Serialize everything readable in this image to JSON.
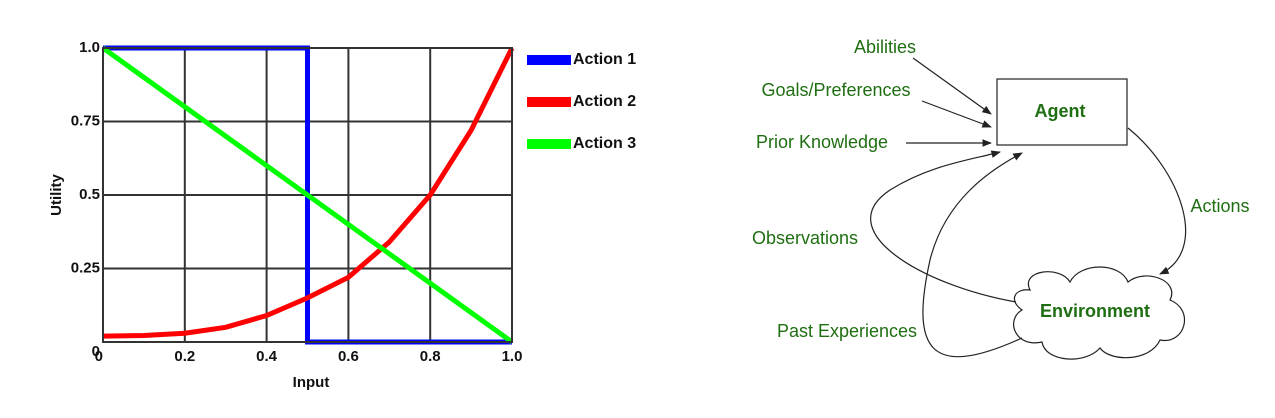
{
  "chart_data": {
    "type": "line",
    "x_label": "Input",
    "y_label": "Utility",
    "xlim": [
      0,
      1
    ],
    "ylim": [
      0,
      1
    ],
    "xticks": [
      0,
      0.2,
      0.4,
      0.6,
      0.8,
      {
        "value": 1,
        "label": "1.0"
      }
    ],
    "yticks": [
      0,
      0.25,
      0.5,
      0.75,
      {
        "value": 1,
        "label": "1.0"
      }
    ],
    "grid": true,
    "legend": "outside-right",
    "series": [
      {
        "name": "Action 1",
        "color": "#0000ff",
        "x": [
          0,
          0.5,
          0.5,
          1
        ],
        "values": [
          1,
          1,
          0,
          0
        ]
      },
      {
        "name": "Action 2",
        "color": "#ff0000",
        "x": [
          0,
          0.1,
          0.2,
          0.3,
          0.4,
          0.5,
          0.6,
          0.7,
          0.8,
          0.9,
          1
        ],
        "values": [
          0.02,
          0.022,
          0.03,
          0.05,
          0.09,
          0.15,
          0.22,
          0.34,
          0.5,
          0.72,
          1
        ]
      },
      {
        "name": "Action 3",
        "color": "#00ff00",
        "x": [
          0,
          1
        ],
        "values": [
          1,
          0
        ]
      }
    ]
  },
  "diagram": {
    "nodes": [
      {
        "label": "Agent"
      },
      {
        "label": "Environment"
      }
    ],
    "inputs": [
      "Abilities",
      "Goals/Preferences",
      "Prior Knowledge",
      "Observations",
      "Past Experiences"
    ],
    "output": "Actions"
  }
}
